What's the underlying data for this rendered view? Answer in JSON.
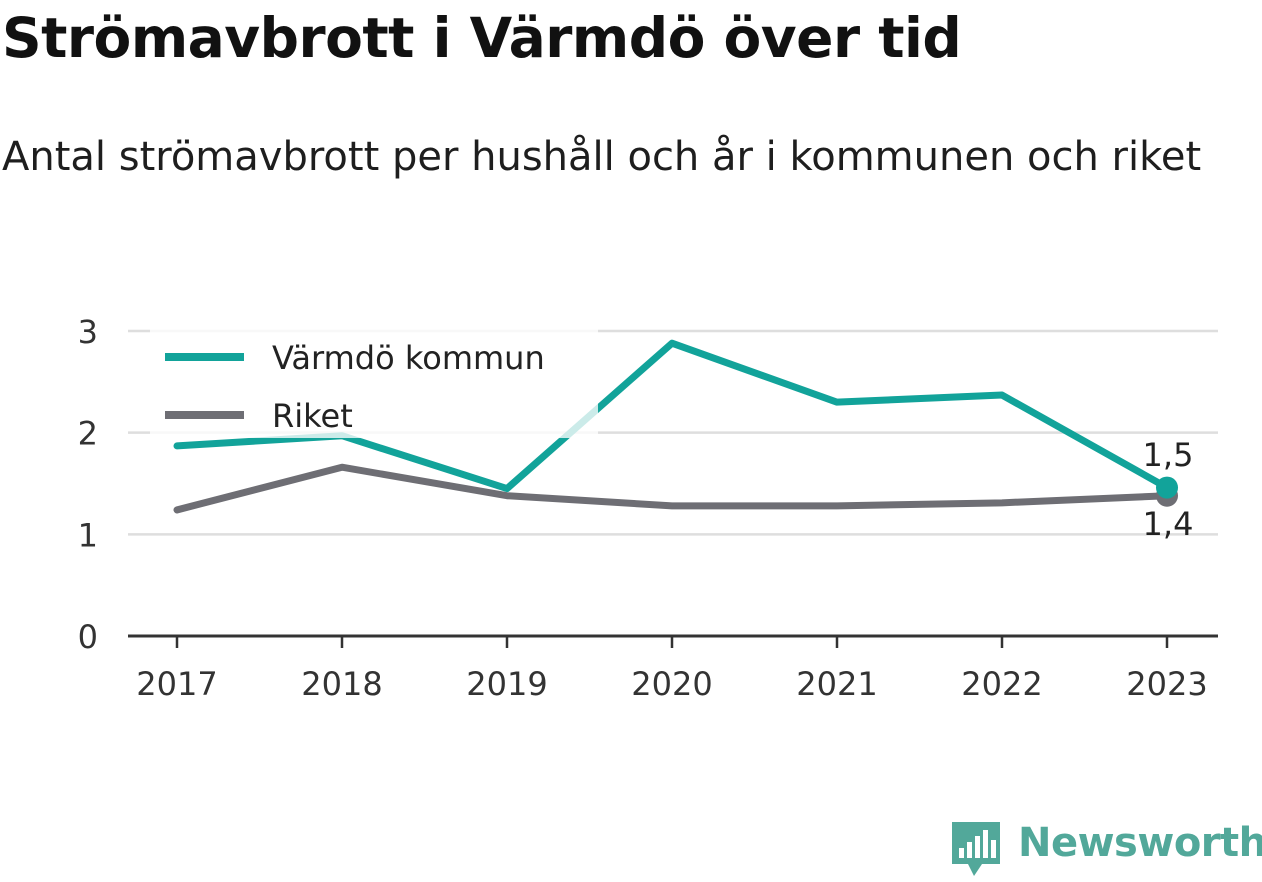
{
  "title": "Strömavbrott i Värmdö över tid",
  "subtitle": "Antal strömavbrott per hushåll och år i kommunen och riket",
  "brand": {
    "name": "Newsworthy",
    "icon": "bar-chart-logo-icon"
  },
  "chart_data": {
    "type": "line",
    "title": "Strömavbrott i Värmdö över tid",
    "subtitle": "Antal strömavbrott per hushåll och år i kommunen och riket",
    "xlabel": "",
    "ylabel": "",
    "categories": [
      "2017",
      "2018",
      "2019",
      "2020",
      "2021",
      "2022",
      "2023"
    ],
    "ylim": [
      0,
      3
    ],
    "yticks": [
      "0",
      "1",
      "2",
      "3"
    ],
    "grid": true,
    "legend": "top-left",
    "series": [
      {
        "name": "Värmdö kommun",
        "color": "#12a39a",
        "values": [
          1.87,
          1.97,
          1.45,
          2.88,
          2.3,
          2.37,
          1.46
        ]
      },
      {
        "name": "Riket",
        "color": "#6e6e74",
        "values": [
          1.24,
          1.66,
          1.38,
          1.28,
          1.28,
          1.31,
          1.38
        ]
      }
    ],
    "end_labels": [
      "1,5",
      "1,4"
    ]
  }
}
